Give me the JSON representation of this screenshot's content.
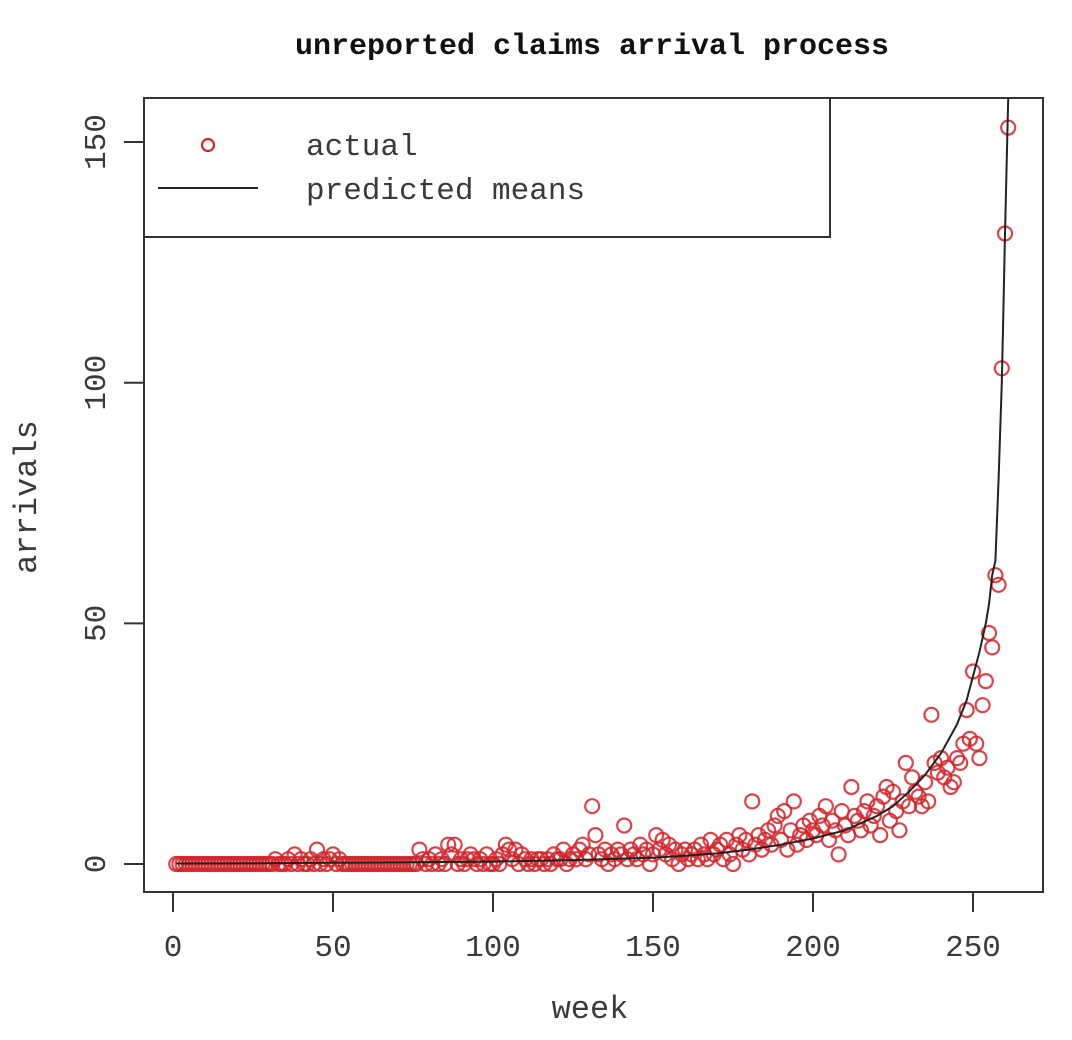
{
  "chart_data": {
    "type": "scatter",
    "title": "unreported claims arrival process",
    "xlabel": "week",
    "ylabel": "arrivals",
    "xlim": [
      -9,
      272
    ],
    "ylim": [
      -6,
      159
    ],
    "x_ticks": [
      0,
      50,
      100,
      150,
      200,
      250
    ],
    "x_tick_labels": [
      "0",
      "50",
      "100",
      "150",
      "200",
      "250"
    ],
    "y_ticks": [
      0,
      50,
      100,
      150
    ],
    "y_tick_labels": [
      "0",
      "50",
      "100",
      "150"
    ],
    "grid": false,
    "legend_position": "top-left",
    "legend": [
      {
        "label": "actual",
        "symbol": "circle",
        "color": "#d0242a"
      },
      {
        "label": "predicted means",
        "symbol": "line",
        "color": "#222222"
      }
    ],
    "series": [
      {
        "name": "actual",
        "kind": "points",
        "color": "#d0242a",
        "points": [
          [
            1,
            0
          ],
          [
            2,
            0
          ],
          [
            3,
            0
          ],
          [
            4,
            0
          ],
          [
            5,
            0
          ],
          [
            6,
            0
          ],
          [
            7,
            0
          ],
          [
            8,
            0
          ],
          [
            9,
            0
          ],
          [
            10,
            0
          ],
          [
            11,
            0
          ],
          [
            12,
            0
          ],
          [
            13,
            0
          ],
          [
            14,
            0
          ],
          [
            15,
            0
          ],
          [
            16,
            0
          ],
          [
            17,
            0
          ],
          [
            18,
            0
          ],
          [
            19,
            0
          ],
          [
            20,
            0
          ],
          [
            21,
            0
          ],
          [
            22,
            0
          ],
          [
            23,
            0
          ],
          [
            24,
            0
          ],
          [
            25,
            0
          ],
          [
            26,
            0
          ],
          [
            27,
            0
          ],
          [
            28,
            0
          ],
          [
            29,
            0
          ],
          [
            30,
            0
          ],
          [
            31,
            0
          ],
          [
            32,
            1
          ],
          [
            33,
            0
          ],
          [
            34,
            0
          ],
          [
            35,
            0
          ],
          [
            36,
            1
          ],
          [
            37,
            0
          ],
          [
            38,
            2
          ],
          [
            39,
            0
          ],
          [
            40,
            1
          ],
          [
            41,
            0
          ],
          [
            42,
            0
          ],
          [
            43,
            1
          ],
          [
            44,
            0
          ],
          [
            45,
            3
          ],
          [
            46,
            0
          ],
          [
            47,
            1
          ],
          [
            48,
            0
          ],
          [
            49,
            1
          ],
          [
            50,
            2
          ],
          [
            51,
            0
          ],
          [
            52,
            1
          ],
          [
            53,
            0
          ],
          [
            54,
            0
          ],
          [
            55,
            0
          ],
          [
            56,
            0
          ],
          [
            57,
            0
          ],
          [
            58,
            0
          ],
          [
            59,
            0
          ],
          [
            60,
            0
          ],
          [
            61,
            0
          ],
          [
            62,
            0
          ],
          [
            63,
            0
          ],
          [
            64,
            0
          ],
          [
            65,
            0
          ],
          [
            66,
            0
          ],
          [
            67,
            0
          ],
          [
            68,
            0
          ],
          [
            69,
            0
          ],
          [
            70,
            0
          ],
          [
            71,
            0
          ],
          [
            72,
            0
          ],
          [
            73,
            0
          ],
          [
            74,
            0
          ],
          [
            75,
            0
          ],
          [
            76,
            0
          ],
          [
            77,
            3
          ],
          [
            78,
            1
          ],
          [
            79,
            0
          ],
          [
            80,
            1
          ],
          [
            81,
            0
          ],
          [
            82,
            2
          ],
          [
            83,
            0
          ],
          [
            84,
            1
          ],
          [
            85,
            0
          ],
          [
            86,
            4
          ],
          [
            87,
            2
          ],
          [
            88,
            4
          ],
          [
            89,
            0
          ],
          [
            90,
            1
          ],
          [
            91,
            0
          ],
          [
            92,
            1
          ],
          [
            93,
            2
          ],
          [
            94,
            1
          ],
          [
            95,
            0
          ],
          [
            96,
            1
          ],
          [
            97,
            0
          ],
          [
            98,
            2
          ],
          [
            99,
            0
          ],
          [
            100,
            0
          ],
          [
            101,
            1
          ],
          [
            102,
            0
          ],
          [
            103,
            2
          ],
          [
            104,
            4
          ],
          [
            105,
            3
          ],
          [
            106,
            1
          ],
          [
            107,
            3
          ],
          [
            108,
            0
          ],
          [
            109,
            2
          ],
          [
            110,
            1
          ],
          [
            111,
            0
          ],
          [
            112,
            1
          ],
          [
            113,
            0
          ],
          [
            114,
            1
          ],
          [
            115,
            1
          ],
          [
            116,
            0
          ],
          [
            117,
            1
          ],
          [
            118,
            0
          ],
          [
            119,
            2
          ],
          [
            120,
            1
          ],
          [
            121,
            1
          ],
          [
            122,
            3
          ],
          [
            123,
            0
          ],
          [
            124,
            1
          ],
          [
            125,
            2
          ],
          [
            126,
            1
          ],
          [
            127,
            3
          ],
          [
            128,
            4
          ],
          [
            129,
            1
          ],
          [
            130,
            2
          ],
          [
            131,
            12
          ],
          [
            132,
            6
          ],
          [
            133,
            2
          ],
          [
            134,
            1
          ],
          [
            135,
            3
          ],
          [
            136,
            0
          ],
          [
            137,
            2
          ],
          [
            138,
            1
          ],
          [
            139,
            3
          ],
          [
            140,
            2
          ],
          [
            141,
            8
          ],
          [
            142,
            1
          ],
          [
            143,
            3
          ],
          [
            144,
            2
          ],
          [
            145,
            1
          ],
          [
            146,
            4
          ],
          [
            147,
            2
          ],
          [
            148,
            3
          ],
          [
            149,
            0
          ],
          [
            150,
            2
          ],
          [
            151,
            6
          ],
          [
            152,
            3
          ],
          [
            153,
            5
          ],
          [
            154,
            2
          ],
          [
            155,
            4
          ],
          [
            156,
            1
          ],
          [
            157,
            3
          ],
          [
            158,
            0
          ],
          [
            159,
            2
          ],
          [
            160,
            3
          ],
          [
            161,
            1
          ],
          [
            162,
            2
          ],
          [
            163,
            3
          ],
          [
            164,
            1
          ],
          [
            165,
            4
          ],
          [
            166,
            2
          ],
          [
            167,
            1
          ],
          [
            168,
            5
          ],
          [
            169,
            2
          ],
          [
            170,
            3
          ],
          [
            171,
            4
          ],
          [
            172,
            1
          ],
          [
            173,
            5
          ],
          [
            174,
            2
          ],
          [
            175,
            0
          ],
          [
            176,
            4
          ],
          [
            177,
            6
          ],
          [
            178,
            3
          ],
          [
            179,
            5
          ],
          [
            180,
            2
          ],
          [
            181,
            13
          ],
          [
            182,
            4
          ],
          [
            183,
            6
          ],
          [
            184,
            3
          ],
          [
            185,
            5
          ],
          [
            186,
            7
          ],
          [
            187,
            4
          ],
          [
            188,
            8
          ],
          [
            189,
            10
          ],
          [
            190,
            5
          ],
          [
            191,
            11
          ],
          [
            192,
            3
          ],
          [
            193,
            7
          ],
          [
            194,
            13
          ],
          [
            195,
            4
          ],
          [
            196,
            6
          ],
          [
            197,
            8
          ],
          [
            198,
            5
          ],
          [
            199,
            9
          ],
          [
            200,
            7
          ],
          [
            201,
            6
          ],
          [
            202,
            10
          ],
          [
            203,
            8
          ],
          [
            204,
            12
          ],
          [
            205,
            5
          ],
          [
            206,
            9
          ],
          [
            207,
            7
          ],
          [
            208,
            2
          ],
          [
            209,
            11
          ],
          [
            210,
            8
          ],
          [
            211,
            6
          ],
          [
            212,
            16
          ],
          [
            213,
            10
          ],
          [
            214,
            9
          ],
          [
            215,
            7
          ],
          [
            216,
            11
          ],
          [
            217,
            13
          ],
          [
            218,
            8
          ],
          [
            219,
            10
          ],
          [
            220,
            12
          ],
          [
            221,
            6
          ],
          [
            222,
            14
          ],
          [
            223,
            16
          ],
          [
            224,
            9
          ],
          [
            225,
            15
          ],
          [
            226,
            11
          ],
          [
            227,
            7
          ],
          [
            228,
            13
          ],
          [
            229,
            21
          ],
          [
            230,
            12
          ],
          [
            231,
            18
          ],
          [
            232,
            15
          ],
          [
            233,
            14
          ],
          [
            234,
            12
          ],
          [
            235,
            17
          ],
          [
            236,
            13
          ],
          [
            237,
            31
          ],
          [
            238,
            21
          ],
          [
            239,
            19
          ],
          [
            240,
            22
          ],
          [
            241,
            18
          ],
          [
            242,
            20
          ],
          [
            243,
            16
          ],
          [
            244,
            17
          ],
          [
            245,
            22
          ],
          [
            246,
            21
          ],
          [
            247,
            25
          ],
          [
            248,
            32
          ],
          [
            249,
            26
          ],
          [
            250,
            40
          ],
          [
            251,
            25
          ],
          [
            252,
            22
          ],
          [
            253,
            33
          ],
          [
            254,
            38
          ],
          [
            255,
            48
          ],
          [
            256,
            45
          ],
          [
            257,
            60
          ],
          [
            258,
            58
          ],
          [
            259,
            103
          ],
          [
            260,
            131
          ],
          [
            261,
            153
          ]
        ]
      },
      {
        "name": "predicted means",
        "kind": "line",
        "color": "#222222",
        "points": [
          [
            1,
            0.1
          ],
          [
            25,
            0.15
          ],
          [
            50,
            0.25
          ],
          [
            75,
            0.35
          ],
          [
            100,
            0.5
          ],
          [
            125,
            0.8
          ],
          [
            150,
            1.3
          ],
          [
            160,
            1.7
          ],
          [
            170,
            2.2
          ],
          [
            180,
            3.0
          ],
          [
            190,
            4.0
          ],
          [
            200,
            5.3
          ],
          [
            210,
            7.0
          ],
          [
            220,
            10.0
          ],
          [
            225,
            12.0
          ],
          [
            230,
            15.0
          ],
          [
            235,
            18.5
          ],
          [
            240,
            23.0
          ],
          [
            245,
            29.0
          ],
          [
            248,
            34.0
          ],
          [
            250,
            39.0
          ],
          [
            252,
            44.0
          ],
          [
            254,
            50.0
          ],
          [
            255,
            54.0
          ],
          [
            256,
            60.0
          ],
          [
            257,
            63.0
          ],
          [
            258,
            80.0
          ],
          [
            259,
            100.0
          ],
          [
            259.5,
            115.0
          ],
          [
            260,
            131.0
          ],
          [
            260.5,
            145.0
          ],
          [
            261,
            159.0
          ]
        ]
      }
    ]
  }
}
